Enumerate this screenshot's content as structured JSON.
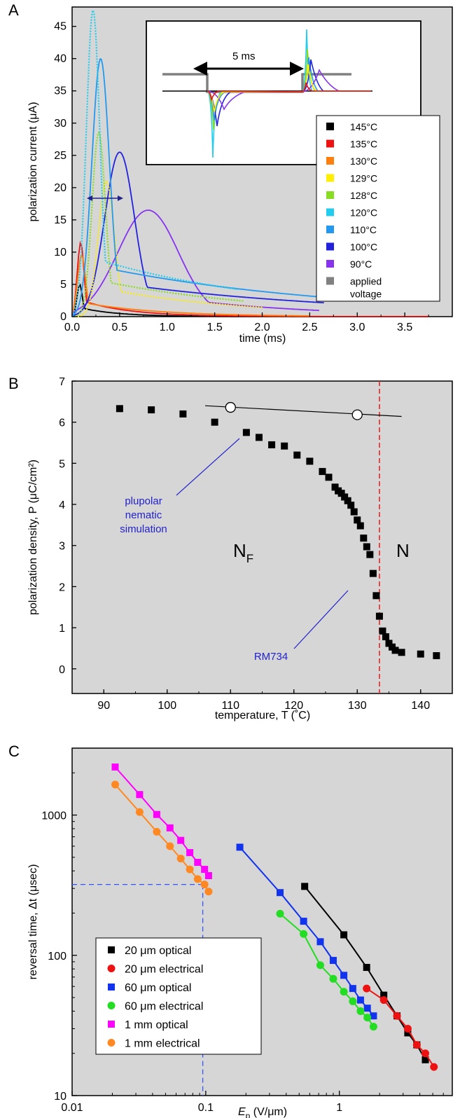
{
  "chart_data": [
    {
      "panel": "A",
      "type": "line",
      "xlabel": "time (ms)",
      "ylabel": "polarization current (μA)",
      "xlim": [
        0,
        4.0
      ],
      "ylim": [
        0,
        48
      ],
      "xticks": [
        0.0,
        0.5,
        1.0,
        1.5,
        2.0,
        2.5,
        3.0,
        3.5
      ],
      "xtick_labels": [
        "0.0",
        "0.5",
        "1.0",
        "1.5",
        "2.0",
        "2.5",
        "3.0",
        "3.5"
      ],
      "yticks": [
        0,
        5,
        10,
        15,
        20,
        25,
        30,
        35,
        40,
        45
      ],
      "ytick_labels": [
        "0",
        "5",
        "10",
        "15",
        "20",
        "25",
        "30",
        "35",
        "40",
        "45"
      ],
      "grid": false,
      "legend": "lower-right",
      "inset_annotation": "5 ms",
      "series": [
        {
          "name": "145°C",
          "color": "#000000",
          "peak_t": 0.08,
          "peak": 5.0,
          "width": 0.04,
          "tail": 0.4,
          "end": 3.75
        },
        {
          "name": "135°C",
          "color": "#ee1111",
          "peak_t": 0.09,
          "peak": 11.5,
          "width": 0.05,
          "tail": 0.5,
          "end": 3.75
        },
        {
          "name": "130°C",
          "color": "#ff7f0e",
          "peak_t": 0.1,
          "peak": 9.5,
          "width": 0.06,
          "tail": 0.8,
          "end": 2.5
        },
        {
          "name": "129°C",
          "color": "#ffee00",
          "peak_t": 0.36,
          "peak": 21.0,
          "width": 0.12,
          "tail": 1.5,
          "end": 2.0
        },
        {
          "name": "128°C",
          "color": "#88dd22",
          "peak_t": 0.28,
          "peak": 28.5,
          "width": 0.1,
          "tail": 1.8,
          "end": 1.8
        },
        {
          "name": "120°C",
          "color": "#22ccee",
          "peak_t": 0.22,
          "peak": 47.5,
          "width": 0.1,
          "tail": 2.0,
          "end": 1.75
        },
        {
          "name": "110°C",
          "color": "#2299ee",
          "peak_t": 0.3,
          "peak": 40.0,
          "width": 0.13,
          "tail": 2.5,
          "end": 2.6
        },
        {
          "name": "100°C",
          "color": "#2222dd",
          "peak_t": 0.5,
          "peak": 25.5,
          "width": 0.22,
          "tail": 2.5,
          "end": 2.65
        },
        {
          "name": "90°C",
          "color": "#8833ee",
          "peak_t": 0.8,
          "peak": 16.5,
          "width": 0.45,
          "tail": 1.4,
          "end": 2.6
        },
        {
          "name": "applied\nvoltage",
          "color": "#808080"
        }
      ]
    },
    {
      "panel": "B",
      "type": "scatter",
      "xlabel": "temperature, T (˚C)",
      "ylabel": "polarization density, P (μC/cm²)",
      "xlim": [
        85,
        145
      ],
      "ylim": [
        -0.6,
        7.0
      ],
      "xticks": [
        90,
        100,
        110,
        120,
        130,
        140
      ],
      "yticks": [
        0,
        1,
        2,
        3,
        4,
        5,
        6,
        7
      ],
      "grid": false,
      "phase_boundary_T": 133.5,
      "labels": {
        "nf": "N",
        "nf_sub": "F",
        "n": "N"
      },
      "annotations": {
        "sim": [
          "plupolar",
          "nematic",
          "simulation"
        ],
        "rm": "RM734"
      },
      "series": [
        {
          "name": "RM734",
          "marker": "square",
          "color": "#000000",
          "x": [
            92.5,
            97.5,
            102.5,
            107.5,
            112.5,
            114.5,
            116.5,
            118.5,
            120.5,
            122.5,
            124.5,
            125.5,
            126.5,
            127.0,
            127.5,
            128.0,
            128.5,
            129.0,
            129.5,
            130.0,
            130.5,
            131.0,
            131.5,
            132.0,
            132.5,
            133.0,
            133.5,
            134.0,
            134.5,
            135.0,
            135.5,
            136.0,
            137.0,
            140.0,
            142.5
          ],
          "y": [
            6.33,
            6.3,
            6.2,
            6.0,
            5.75,
            5.63,
            5.45,
            5.42,
            5.2,
            5.05,
            4.8,
            4.66,
            4.42,
            4.33,
            4.27,
            4.18,
            4.09,
            3.98,
            3.82,
            3.62,
            3.48,
            3.18,
            2.97,
            2.78,
            2.32,
            1.78,
            1.28,
            0.92,
            0.78,
            0.62,
            0.53,
            0.45,
            0.4,
            0.36,
            0.32
          ]
        },
        {
          "name": "plupolar nematic simulation",
          "marker": "circle-open",
          "color": "#000000",
          "x": [
            110,
            130
          ],
          "y": [
            6.36,
            6.18
          ],
          "line_x": [
            106,
            137
          ],
          "line_y": [
            6.4,
            6.14
          ]
        }
      ]
    },
    {
      "panel": "C",
      "type": "scatter",
      "xscale": "log",
      "yscale": "log",
      "xlabel_main": "E",
      "xlabel_sub": "p",
      "xlabel_unit": " (V/μm)",
      "ylabel": "reversal time, Δt (μsec)",
      "xlim": [
        0.01,
        7
      ],
      "ylim": [
        10,
        3000
      ],
      "xticks": [
        0.01,
        0.1,
        1
      ],
      "xtick_labels": [
        "0.01",
        "0.1",
        "1"
      ],
      "yticks": [
        10,
        100,
        1000
      ],
      "ytick_labels": [
        "10",
        "100",
        "1000"
      ],
      "grid": false,
      "legend": "lower-left",
      "reference_lines": {
        "x": 0.095,
        "y": 320
      },
      "series": [
        {
          "name": "20 μm optical",
          "marker": "square",
          "color": "#000000",
          "x": [
            0.55,
            1.08,
            1.6,
            2.15,
            2.7,
            3.25,
            3.8,
            4.4
          ],
          "y": [
            310,
            140,
            82,
            52,
            37,
            28,
            23,
            18
          ]
        },
        {
          "name": "20 μm electrical",
          "marker": "circle",
          "color": "#ee1111",
          "x": [
            1.6,
            2.15,
            2.7,
            3.25,
            3.8,
            4.4,
            5.1
          ],
          "y": [
            58,
            48,
            37,
            30,
            23,
            20,
            16
          ]
        },
        {
          "name": "60 μm optical",
          "marker": "square",
          "color": "#1133ee",
          "x": [
            0.18,
            0.36,
            0.54,
            0.72,
            0.9,
            1.08,
            1.26,
            1.44,
            1.62,
            1.8
          ],
          "y": [
            590,
            280,
            175,
            125,
            92,
            72,
            58,
            48,
            42,
            37
          ]
        },
        {
          "name": "60 μm electrical",
          "marker": "circle",
          "color": "#22dd22",
          "x": [
            0.36,
            0.54,
            0.72,
            0.9,
            1.08,
            1.26,
            1.44,
            1.62,
            1.8
          ],
          "y": [
            198,
            142,
            85,
            68,
            55,
            47,
            40,
            36,
            31
          ]
        },
        {
          "name": "1 mm optical",
          "marker": "square",
          "color": "#ff00ff",
          "x": [
            0.021,
            0.032,
            0.043,
            0.054,
            0.065,
            0.076,
            0.087,
            0.098,
            0.105
          ],
          "y": [
            2200,
            1400,
            1010,
            810,
            660,
            540,
            460,
            410,
            370
          ]
        },
        {
          "name": "1 mm electrical",
          "marker": "circle",
          "color": "#ff8822",
          "x": [
            0.021,
            0.032,
            0.043,
            0.054,
            0.065,
            0.076,
            0.087,
            0.098,
            0.105
          ],
          "y": [
            1650,
            1050,
            760,
            600,
            490,
            410,
            350,
            320,
            285
          ]
        }
      ]
    }
  ]
}
